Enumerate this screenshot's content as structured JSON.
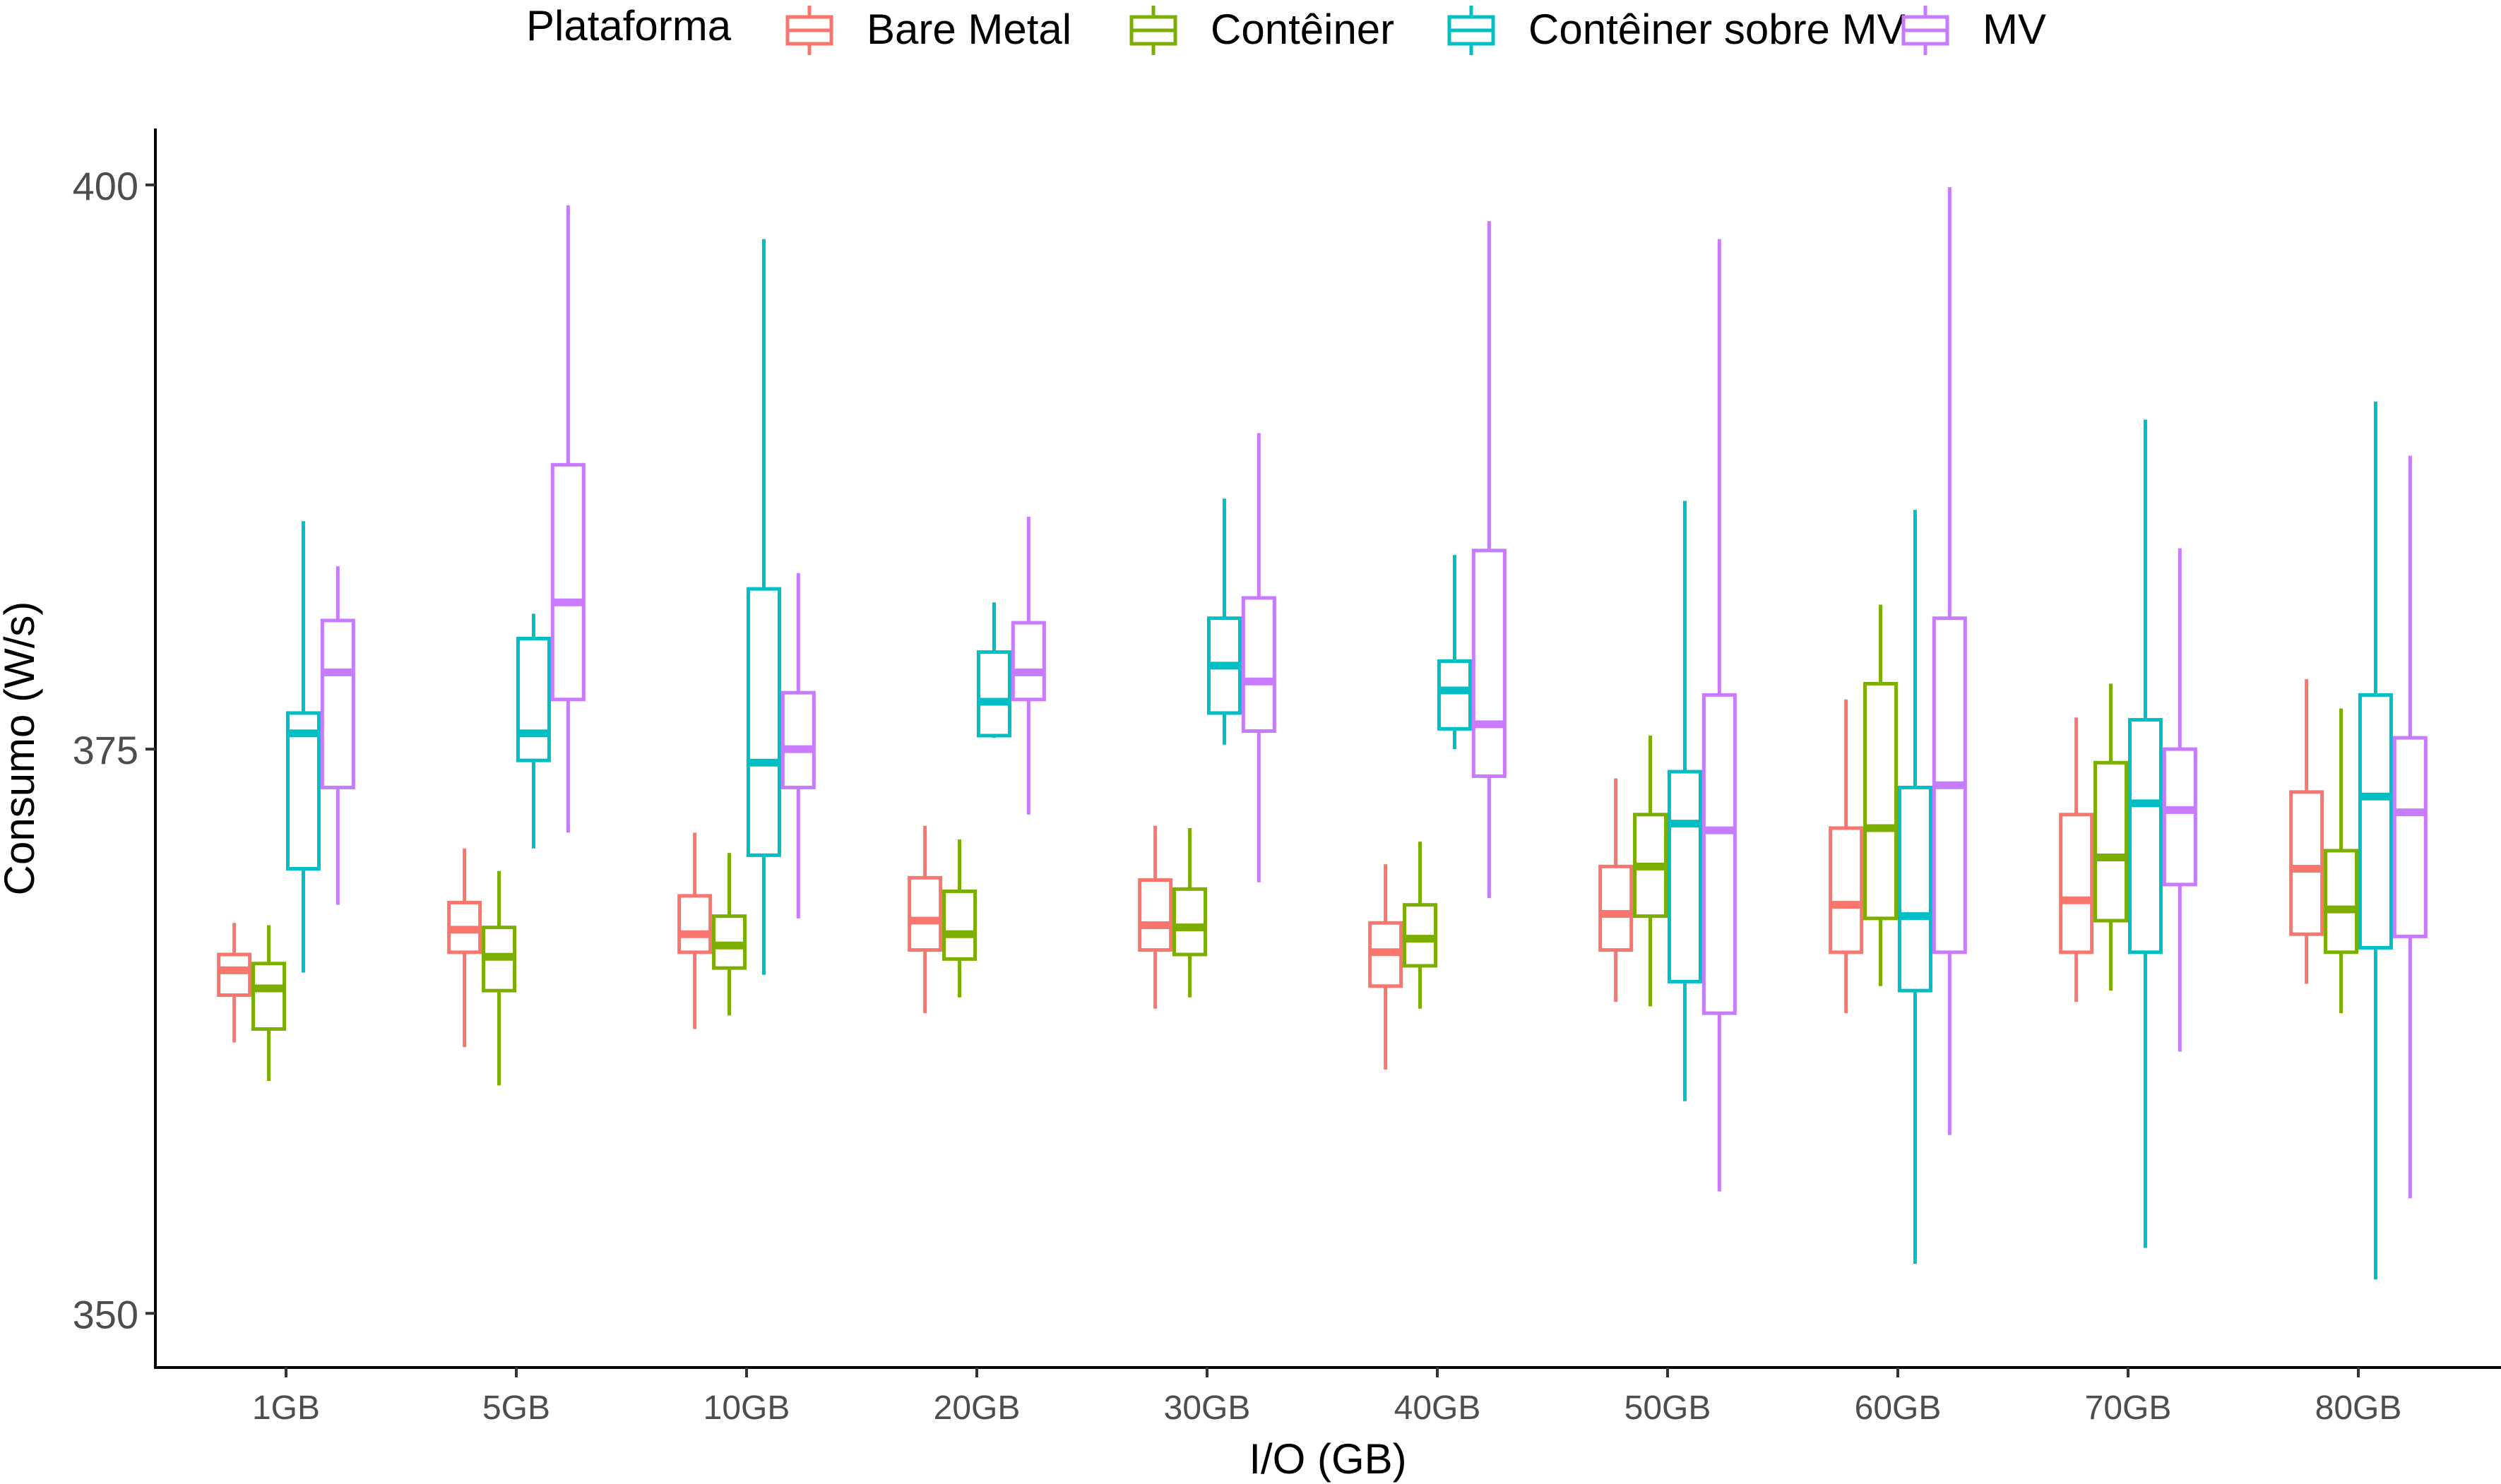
{
  "chart_data": {
    "type": "boxplot",
    "title": "",
    "xlabel": "I/O (GB)",
    "ylabel": "Consumo (W/s)",
    "ylim": [
      347.6,
      402.5
    ],
    "yticks": [
      350,
      375,
      400
    ],
    "grid": false,
    "legend": {
      "title": "Plataforma",
      "position": "top"
    },
    "categories": [
      "1GB",
      "5GB",
      "10GB",
      "20GB",
      "30GB",
      "40GB",
      "50GB",
      "60GB",
      "70GB",
      "80GB"
    ],
    "series": [
      {
        "name": "Bare Metal",
        "color": "#F8766D",
        "boxes": [
          {
            "min": 362.0,
            "q1": 364.1,
            "median": 365.2,
            "q3": 365.9,
            "max": 367.3
          },
          {
            "min": 361.8,
            "q1": 366.0,
            "median": 367.0,
            "q3": 368.2,
            "max": 370.6
          },
          {
            "min": 362.6,
            "q1": 366.0,
            "median": 366.8,
            "q3": 368.5,
            "max": 371.3
          },
          {
            "min": 363.3,
            "q1": 366.1,
            "median": 367.4,
            "q3": 369.3,
            "max": 371.6
          },
          {
            "min": 363.5,
            "q1": 366.1,
            "median": 367.2,
            "q3": 369.2,
            "max": 371.6
          },
          {
            "min": 360.8,
            "q1": 364.5,
            "median": 366.0,
            "q3": 367.3,
            "max": 369.9
          },
          {
            "min": 363.8,
            "q1": 366.1,
            "median": 367.7,
            "q3": 369.8,
            "max": 373.7
          },
          {
            "min": 363.3,
            "q1": 366.0,
            "median": 368.1,
            "q3": 371.5,
            "max": 377.2
          },
          {
            "min": 363.8,
            "q1": 366.0,
            "median": 368.3,
            "q3": 372.1,
            "max": 376.4
          },
          {
            "min": 364.6,
            "q1": 366.8,
            "median": 369.7,
            "q3": 373.1,
            "max": 378.1
          }
        ]
      },
      {
        "name": "Contêiner",
        "color": "#7CAE00",
        "boxes": [
          {
            "min": 360.3,
            "q1": 362.6,
            "median": 364.4,
            "q3": 365.5,
            "max": 367.2
          },
          {
            "min": 360.1,
            "q1": 364.3,
            "median": 365.8,
            "q3": 367.1,
            "max": 369.6
          },
          {
            "min": 363.2,
            "q1": 365.3,
            "median": 366.3,
            "q3": 367.6,
            "max": 370.4
          },
          {
            "min": 364.0,
            "q1": 365.7,
            "median": 366.8,
            "q3": 368.7,
            "max": 371.0
          },
          {
            "min": 364.0,
            "q1": 365.9,
            "median": 367.1,
            "q3": 368.8,
            "max": 371.5
          },
          {
            "min": 363.5,
            "q1": 365.4,
            "median": 366.6,
            "q3": 368.1,
            "max": 370.9
          },
          {
            "min": 363.6,
            "q1": 367.6,
            "median": 369.8,
            "q3": 372.1,
            "max": 375.6
          },
          {
            "min": 364.5,
            "q1": 367.5,
            "median": 371.5,
            "q3": 377.9,
            "max": 381.4
          },
          {
            "min": 364.3,
            "q1": 367.4,
            "median": 370.2,
            "q3": 374.4,
            "max": 377.9
          },
          {
            "min": 363.3,
            "q1": 366.0,
            "median": 367.9,
            "q3": 370.5,
            "max": 376.8
          }
        ]
      },
      {
        "name": "Contêiner sobre MV",
        "color": "#00BFC4",
        "boxes": [
          {
            "min": 365.1,
            "q1": 369.7,
            "median": 375.7,
            "q3": 376.6,
            "max": 385.1
          },
          {
            "min": 370.6,
            "q1": 374.5,
            "median": 375.7,
            "q3": 379.9,
            "max": 381.0
          },
          {
            "min": 365.0,
            "q1": 370.3,
            "median": 374.4,
            "q3": 382.1,
            "max": 397.6
          },
          {
            "min": 375.5,
            "q1": 375.6,
            "median": 377.1,
            "q3": 379.3,
            "max": 381.5
          },
          {
            "min": 375.2,
            "q1": 376.6,
            "median": 378.7,
            "q3": 380.8,
            "max": 386.1
          },
          {
            "min": 375.0,
            "q1": 375.9,
            "median": 377.6,
            "q3": 378.9,
            "max": 383.6
          },
          {
            "min": 359.4,
            "q1": 364.7,
            "median": 371.7,
            "q3": 374.0,
            "max": 386.0
          },
          {
            "min": 352.2,
            "q1": 364.3,
            "median": 367.6,
            "q3": 373.3,
            "max": 385.6
          },
          {
            "min": 352.9,
            "q1": 366.0,
            "median": 372.6,
            "q3": 376.3,
            "max": 389.6
          },
          {
            "min": 351.5,
            "q1": 366.2,
            "median": 372.9,
            "q3": 377.4,
            "max": 390.4
          }
        ]
      },
      {
        "name": "MV",
        "color": "#C77CFF",
        "boxes": [
          {
            "min": 368.1,
            "q1": 373.3,
            "median": 378.4,
            "q3": 380.7,
            "max": 383.1
          },
          {
            "min": 371.3,
            "q1": 377.2,
            "median": 381.5,
            "q3": 387.6,
            "max": 399.1
          },
          {
            "min": 367.5,
            "q1": 373.3,
            "median": 375.0,
            "q3": 377.5,
            "max": 382.8
          },
          {
            "min": 372.1,
            "q1": 377.2,
            "median": 378.4,
            "q3": 380.6,
            "max": 385.3
          },
          {
            "min": 369.1,
            "q1": 375.8,
            "median": 378.0,
            "q3": 381.7,
            "max": 389.0
          },
          {
            "min": 368.4,
            "q1": 373.8,
            "median": 376.1,
            "q3": 383.8,
            "max": 398.4
          },
          {
            "min": 355.4,
            "q1": 363.3,
            "median": 371.4,
            "q3": 377.4,
            "max": 397.6
          },
          {
            "min": 357.9,
            "q1": 366.0,
            "median": 373.4,
            "q3": 380.8,
            "max": 399.9
          },
          {
            "min": 361.6,
            "q1": 369.0,
            "median": 372.3,
            "q3": 375.0,
            "max": 383.9
          },
          {
            "min": 355.1,
            "q1": 366.7,
            "median": 372.2,
            "q3": 375.5,
            "max": 388.0
          }
        ]
      }
    ]
  }
}
